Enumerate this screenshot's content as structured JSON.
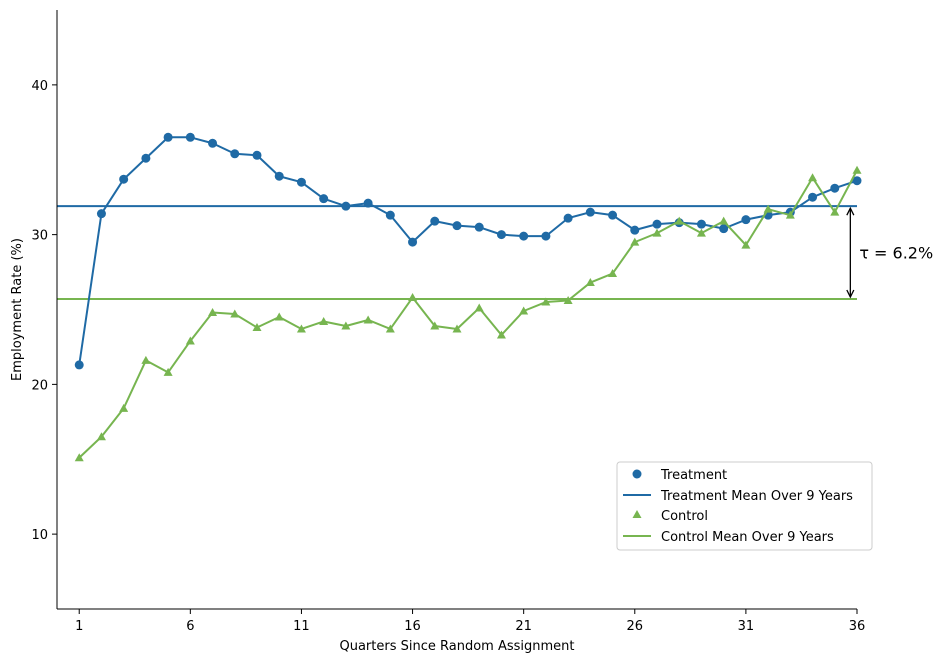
{
  "chart_data": {
    "type": "line",
    "xlabel": "Quarters Since Random Assignment",
    "ylabel": "Employment Rate (%)",
    "xlim": [
      0,
      36
    ],
    "ylim": [
      5,
      45
    ],
    "x_ticks": [
      1,
      6,
      11,
      16,
      21,
      26,
      31,
      36
    ],
    "y_ticks": [
      10,
      20,
      30,
      40
    ],
    "grid": false,
    "legend_position": "lower-right",
    "colors": {
      "treatment": "#1f6aa5",
      "control": "#77b550"
    },
    "x": [
      1,
      2,
      3,
      4,
      5,
      6,
      7,
      8,
      9,
      10,
      11,
      12,
      13,
      14,
      15,
      16,
      17,
      18,
      19,
      20,
      21,
      22,
      23,
      24,
      25,
      26,
      27,
      28,
      29,
      30,
      31,
      32,
      33,
      34,
      35,
      36
    ],
    "series": [
      {
        "name": "Treatment",
        "marker": "circle",
        "values": [
          21.3,
          31.4,
          33.7,
          35.1,
          36.5,
          36.5,
          36.1,
          35.4,
          35.3,
          33.9,
          33.5,
          32.4,
          31.9,
          32.1,
          31.3,
          29.5,
          30.9,
          30.6,
          30.5,
          30.0,
          29.9,
          29.9,
          31.1,
          31.5,
          31.3,
          30.3,
          30.7,
          30.8,
          30.7,
          30.4,
          31.0,
          31.3,
          31.5,
          32.5,
          33.1,
          33.6
        ]
      },
      {
        "name": "Control",
        "marker": "triangle",
        "values": [
          15.1,
          16.5,
          18.4,
          21.6,
          20.8,
          22.9,
          24.8,
          24.7,
          23.8,
          24.5,
          23.7,
          24.2,
          23.9,
          24.3,
          23.7,
          25.8,
          23.9,
          23.7,
          25.1,
          23.3,
          24.9,
          25.5,
          25.6,
          26.8,
          27.4,
          29.5,
          30.1,
          30.9,
          30.1,
          30.9,
          29.3,
          31.7,
          31.3,
          33.8,
          31.5,
          34.3
        ]
      }
    ],
    "mean_lines": [
      {
        "name": "Treatment Mean Over 9 Years",
        "value": 31.9
      },
      {
        "name": "Control Mean Over 9 Years",
        "value": 25.7
      }
    ],
    "annotation": {
      "text": "τ = 6.2%",
      "x": 35.7,
      "y_from": 25.7,
      "y_to": 31.9
    }
  }
}
